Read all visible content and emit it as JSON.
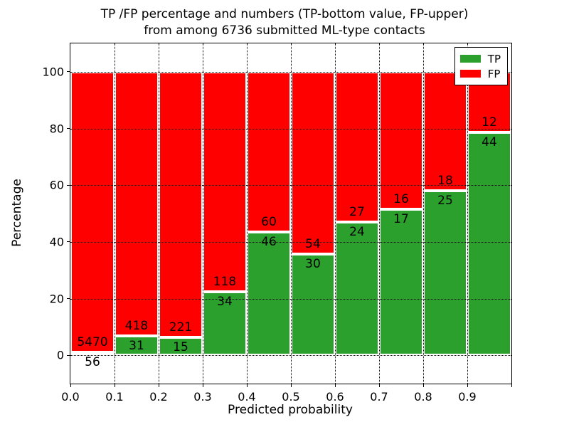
{
  "title": {
    "line1": "TP /FP percentage and numbers (TP-bottom value, FP-upper)",
    "line2": "from among 6736 submitted ML-type contacts"
  },
  "chart_data": {
    "type": "bar",
    "stacked": true,
    "normalized_to_percent": 100,
    "title": "TP /FP percentage and numbers (TP-bottom value, FP-upper)\nfrom among 6736 submitted ML-type contacts",
    "xlabel": "Predicted probability",
    "ylabel": "Percentage",
    "total_contacts": 6736,
    "bin_width": 0.1,
    "bin_starts": [
      0.0,
      0.1,
      0.2,
      0.3,
      0.4,
      0.5,
      0.6,
      0.7,
      0.8,
      0.9
    ],
    "series": [
      {
        "name": "TP",
        "color": "#2ca02c",
        "counts": [
          56,
          31,
          15,
          34,
          46,
          30,
          24,
          17,
          25,
          44
        ]
      },
      {
        "name": "FP",
        "color": "#ff0000",
        "counts": [
          5470,
          418,
          221,
          118,
          60,
          54,
          27,
          16,
          18,
          12
        ]
      }
    ],
    "tp_percent_of_bin": [
      1.01,
      6.9,
      6.36,
      22.37,
      43.4,
      35.71,
      47.06,
      51.52,
      58.14,
      78.57
    ],
    "xticks": [
      "0.0",
      "0.1",
      "0.2",
      "0.3",
      "0.4",
      "0.5",
      "0.6",
      "0.7",
      "0.8",
      "0.9"
    ],
    "yticks": [
      0,
      20,
      40,
      60,
      80,
      100
    ],
    "xlim": [
      0,
      1
    ],
    "ylim": [
      -10,
      110
    ],
    "grid": true,
    "grid_style": "dotted",
    "bar_edge_color": "#ffffff",
    "legend": {
      "position": "upper right",
      "entries": [
        {
          "label": "TP",
          "color": "#2ca02c"
        },
        {
          "label": "FP",
          "color": "#ff0000"
        }
      ]
    }
  }
}
